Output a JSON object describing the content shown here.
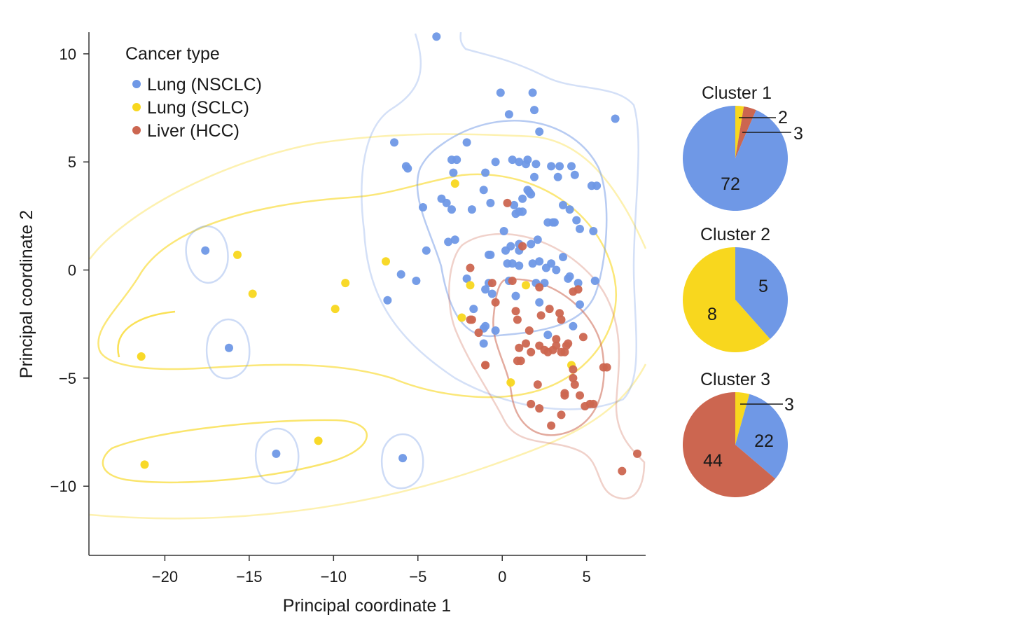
{
  "chart_data": [
    {
      "type": "scatter",
      "title": "",
      "xlabel": "Principal coordinate 1",
      "ylabel": "Principal coordinate 2",
      "xlim": [
        -24.5,
        8.5
      ],
      "ylim": [
        -13.2,
        11.0
      ],
      "xticks": [
        -20,
        -15,
        -10,
        -5,
        0,
        5
      ],
      "yticks": [
        -10,
        -5,
        0,
        5,
        10
      ],
      "x_tick_labels": [
        "−20",
        "−15",
        "−10",
        "−5",
        "0",
        "5"
      ],
      "y_tick_labels": [
        "−10",
        "−5",
        "0",
        "5",
        "10"
      ],
      "grid": false,
      "legend": {
        "title": "Cancer type",
        "position": "top-left"
      },
      "series": [
        {
          "name": "Lung (NSCLC)",
          "color": "#6f98e6",
          "x": [
            -3.9,
            -0.1,
            1.8,
            0.4,
            1.9,
            6.7,
            -2.1,
            2.2,
            -6.4,
            -3.0,
            -2.7,
            -5.7,
            -5.6,
            -2.9,
            -1.0,
            1.4,
            -0.4,
            0.6,
            1.0,
            1.5,
            2.0,
            2.9,
            3.4,
            4.1,
            4.3,
            5.3,
            5.6,
            -1.1,
            1.9,
            3.3,
            3.6,
            1.5,
            -3.6,
            -3.3,
            -4.7,
            -3.0,
            -1.8,
            -0.7,
            0.7,
            1.7,
            0.8,
            1.2,
            1.6,
            1.0,
            1.2,
            4.0,
            3.1,
            4.6,
            2.7,
            3.0,
            4.4,
            5.4,
            0.1,
            2.1,
            1.0,
            0.5,
            1.0,
            0.2,
            1.7,
            0.3,
            0.6,
            -0.8,
            -0.7,
            -4.5,
            2.2,
            -2.8,
            -3.2,
            3.6,
            1.0,
            1.8,
            2.6,
            2.9,
            3.2,
            3.9,
            4.5,
            5.5,
            4.0,
            2.0,
            2.5,
            0.4,
            -2.1,
            -0.8,
            -1.0,
            -0.6,
            -1.7,
            -1.0,
            -0.4,
            0.8,
            2.2,
            4.6,
            2.7,
            4.2,
            -1.1,
            -1.1,
            -5.1,
            -6.0,
            -6.8,
            -17.6,
            -16.2,
            -13.4,
            -5.9
          ],
          "y": [
            10.8,
            8.2,
            8.2,
            7.2,
            7.4,
            7.0,
            5.9,
            6.4,
            5.9,
            5.1,
            5.1,
            4.8,
            4.7,
            4.5,
            4.5,
            4.9,
            5.0,
            5.1,
            5.0,
            5.1,
            4.9,
            4.8,
            4.8,
            4.8,
            4.4,
            3.9,
            3.9,
            3.7,
            4.3,
            4.3,
            3.0,
            3.7,
            3.3,
            3.1,
            2.9,
            2.8,
            2.8,
            3.1,
            3.0,
            3.5,
            2.6,
            2.7,
            3.6,
            2.7,
            3.3,
            2.8,
            2.2,
            1.9,
            2.2,
            2.2,
            2.3,
            1.8,
            1.8,
            1.4,
            1.2,
            1.1,
            0.9,
            0.9,
            1.2,
            0.3,
            0.3,
            0.7,
            0.7,
            0.9,
            0.4,
            1.4,
            1.3,
            0.6,
            0.2,
            0.3,
            0.1,
            0.3,
            0.0,
            -0.4,
            -0.6,
            -0.5,
            -0.3,
            -0.6,
            -0.6,
            -0.5,
            -0.4,
            -0.6,
            -0.9,
            -1.1,
            -1.8,
            -2.6,
            -2.8,
            -1.2,
            -1.5,
            -1.6,
            -3.0,
            -2.6,
            -3.4,
            -2.7,
            -0.5,
            -0.2,
            -1.4,
            0.9,
            -3.6,
            -8.5,
            -8.7
          ]
        },
        {
          "name": "Lung (SCLC)",
          "color": "#f8d71e",
          "x": [
            -2.8,
            1.4,
            -1.9,
            -6.9,
            -9.3,
            -15.7,
            -14.8,
            -9.9,
            -21.4,
            -2.4,
            4.1,
            0.5,
            -10.9,
            -21.2
          ],
          "y": [
            4.0,
            -0.7,
            -0.7,
            0.4,
            -0.6,
            0.7,
            -1.1,
            -1.8,
            -4.0,
            -2.2,
            -4.4,
            -5.2,
            -7.9,
            -9.0
          ]
        },
        {
          "name": "Liver (HCC)",
          "color": "#cc6650",
          "x": [
            0.3,
            -1.9,
            -1.9,
            1.2,
            -0.6,
            0.6,
            2.2,
            4.2,
            4.5,
            -0.4,
            0.8,
            0.9,
            2.3,
            2.8,
            3.4,
            3.5,
            -1.8,
            -1.4,
            1.6,
            3.2,
            2.2,
            2.5,
            1.4,
            3.8,
            4.8,
            -1.0,
            1.1,
            1.0,
            1.7,
            2.7,
            3.0,
            3.2,
            3.5,
            3.7,
            3.9,
            0.9,
            4.2,
            4.2,
            6.0,
            6.2,
            -1.0,
            4.3,
            2.1,
            3.7,
            3.7,
            4.6,
            5.2,
            1.7,
            2.2,
            4.9,
            5.4,
            3.5,
            2.9,
            8.0,
            7.1
          ],
          "y": [
            3.1,
            0.1,
            -2.3,
            1.1,
            -0.6,
            -0.5,
            -0.8,
            -1.0,
            -0.9,
            -1.5,
            -1.9,
            -2.3,
            -2.1,
            -1.8,
            -2.0,
            -2.3,
            -2.3,
            -2.9,
            -2.8,
            -3.2,
            -3.5,
            -3.7,
            -3.4,
            -3.5,
            -3.1,
            -4.4,
            -4.2,
            -3.6,
            -3.8,
            -3.8,
            -3.7,
            -3.5,
            -3.8,
            -3.8,
            -3.4,
            -4.2,
            -4.6,
            -5.0,
            -4.5,
            -4.5,
            -4.4,
            -5.3,
            -5.3,
            -5.7,
            -5.8,
            -5.8,
            -6.2,
            -6.2,
            -6.4,
            -6.3,
            -6.2,
            -6.7,
            -7.2,
            -8.5,
            -9.3
          ]
        }
      ]
    },
    {
      "type": "pie",
      "title": "Cluster 1",
      "values": [
        72,
        2,
        3
      ],
      "series_names": [
        "Lung (NSCLC)",
        "Lung (SCLC)",
        "Liver (HCC)"
      ],
      "labels": [
        "72",
        "2",
        "3"
      ]
    },
    {
      "type": "pie",
      "title": "Cluster 2",
      "values": [
        5,
        8,
        0
      ],
      "series_names": [
        "Lung (NSCLC)",
        "Lung (SCLC)",
        "Liver (HCC)"
      ],
      "labels": [
        "5",
        "8",
        ""
      ]
    },
    {
      "type": "pie",
      "title": "Cluster 3",
      "values": [
        22,
        3,
        44
      ],
      "series_names": [
        "Lung (NSCLC)",
        "Lung (SCLC)",
        "Liver (HCC)"
      ],
      "labels": [
        "22",
        "3",
        "44"
      ]
    }
  ]
}
